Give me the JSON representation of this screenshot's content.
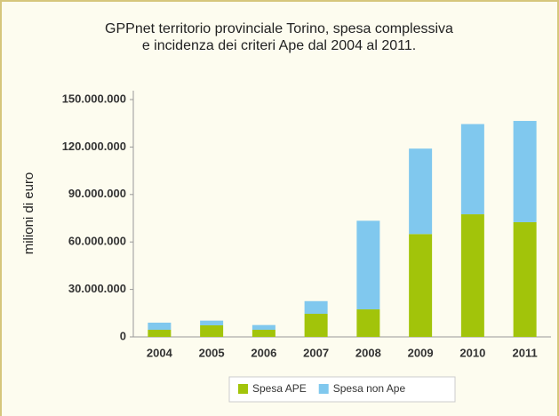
{
  "chart_data": {
    "type": "stacked_bar",
    "title": [
      "GPPnet territorio provinciale Torino, spesa complessiva",
      "e incidenza dei criteri Ape dal 2004 al 2011."
    ],
    "y_label": "milioni di euro",
    "categories": [
      "2004",
      "2005",
      "2006",
      "2007",
      "2008",
      "2009",
      "2010",
      "2011"
    ],
    "series": [
      {
        "name": "Spesa APE",
        "color": "#a2c40a",
        "values": [
          4500000,
          7300000,
          4500000,
          14600000,
          17400000,
          65000000,
          77500000,
          72500000
        ]
      },
      {
        "name": "Spesa non Ape",
        "color": "#80c8ee",
        "values": [
          4500000,
          3000000,
          3000000,
          8000000,
          56000000,
          54000000,
          57000000,
          64000000
        ]
      }
    ],
    "ylim": [
      0,
      150000000
    ],
    "yticks": [
      0,
      {
        "value": 30000000,
        "label": "30.000.000"
      },
      {
        "value": 60000000,
        "label": "60.000.000"
      },
      {
        "value": 90000000,
        "label": "90.000.000"
      },
      {
        "value": 120000000,
        "label": "120.000.000"
      },
      {
        "value": 150000000,
        "label": "150.000.000"
      }
    ],
    "legend": "bottom"
  }
}
